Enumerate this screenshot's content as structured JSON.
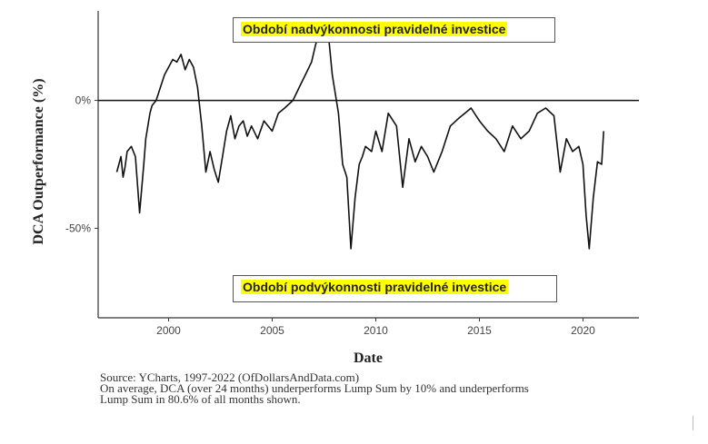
{
  "chart_data": {
    "type": "line",
    "xlabel": "Date",
    "ylabel": "DCA Outperformance (%)",
    "xlim": [
      1996.6,
      2022.7
    ],
    "ylim": [
      -85,
      35
    ],
    "x_ticks": [
      2000,
      2005,
      2010,
      2015,
      2020
    ],
    "y_ticks": [
      0,
      -50
    ],
    "y_tick_labels": [
      "0%",
      "-50%"
    ],
    "reference_line_y": 0,
    "grid": false,
    "annotations": [
      {
        "text": "Období nadvýkonnosti pravidelné investice",
        "position": "top-center",
        "highlight": "#ffff00"
      },
      {
        "text": "Období podvýkonnosti pravidelné investice",
        "position": "bottom-center",
        "highlight": "#ffff00"
      }
    ],
    "caption_lines": [
      "Source:  YCharts, 1997-2022 (OfDollarsAndData.com)",
      "On average, DCA (over 24 months) underperforms Lump Sum by 10% and underperforms",
      "Lump Sum in 80.6% of all months shown."
    ],
    "series": [
      {
        "x": [
          1997.5,
          1997.7,
          1997.8,
          1997.9,
          1998.0,
          1998.2,
          1998.4,
          1998.6,
          1998.8,
          1998.9,
          1999.0,
          1999.1,
          1999.2,
          1999.4,
          1999.6,
          1999.8,
          2000.0,
          2000.2,
          2000.4,
          2000.6,
          2000.8,
          2001.0,
          2001.2,
          2001.4,
          2001.6,
          2001.8,
          2002.0,
          2002.2,
          2002.4,
          2002.6,
          2002.8,
          2003.0,
          2003.2,
          2003.4,
          2003.6,
          2003.8,
          2004.0,
          2004.3,
          2004.6,
          2005.0,
          2005.3,
          2005.6,
          2006.0,
          2006.3,
          2006.6,
          2006.9,
          2007.1,
          2007.3,
          2007.5,
          2007.7,
          2007.9,
          2008.2,
          2008.4,
          2008.6,
          2008.8,
          2009.0,
          2009.2,
          2009.35,
          2009.5,
          2009.8,
          2010.0,
          2010.3,
          2010.6,
          2011.0,
          2011.3,
          2011.6,
          2011.9,
          2012.2,
          2012.5,
          2012.8,
          2013.2,
          2013.6,
          2014.0,
          2014.3,
          2014.6,
          2015.0,
          2015.4,
          2015.8,
          2016.2,
          2016.6,
          2017.0,
          2017.4,
          2017.8,
          2018.2,
          2018.6,
          2018.9,
          2019.2,
          2019.5,
          2019.8,
          2020.0,
          2020.15,
          2020.3,
          2020.5,
          2020.7,
          2020.9,
          2021.0
        ],
        "y": [
          -28,
          -22,
          -30,
          -26,
          -20,
          -18,
          -22,
          -44,
          -25,
          -15,
          -10,
          -5,
          -2,
          0,
          5,
          10,
          13,
          16,
          15,
          18,
          12,
          16,
          13,
          5,
          -10,
          -28,
          -20,
          -27,
          -32,
          -22,
          -12,
          -6,
          -15,
          -10,
          -8,
          -14,
          -10,
          -15,
          -8,
          -12,
          -5,
          -3,
          0,
          5,
          10,
          15,
          22,
          26,
          28,
          27,
          10,
          -5,
          -25,
          -30,
          -58,
          -38,
          -25,
          -22,
          -18,
          -20,
          -12,
          -20,
          -5,
          -10,
          -34,
          -15,
          -24,
          -18,
          -22,
          -28,
          -20,
          -10,
          -7,
          -5,
          -3,
          -8,
          -12,
          -15,
          -20,
          -10,
          -15,
          -12,
          -5,
          -3,
          -6,
          -28,
          -15,
          -20,
          -18,
          -25,
          -45,
          -58,
          -38,
          -24,
          -25,
          -12
        ]
      }
    ]
  }
}
